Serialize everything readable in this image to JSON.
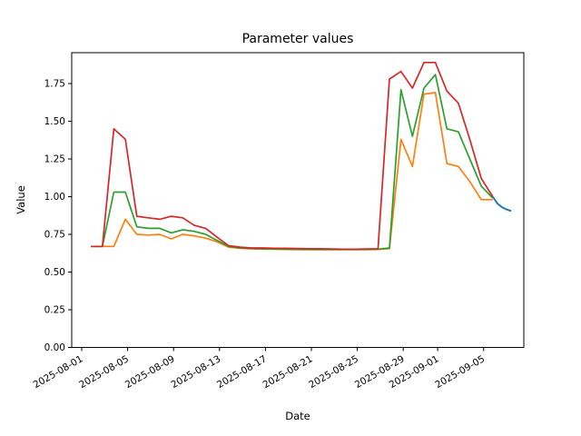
{
  "figure": {
    "background": "#ffffff",
    "text_color": "#000000"
  },
  "chart_data": {
    "type": "line",
    "title": "Parameter values",
    "xlabel": "Date",
    "ylabel": "Value",
    "grid": false,
    "legend": "none",
    "ylim": [
      0.0,
      1.955
    ],
    "yticks": [
      {
        "value": 0.0,
        "label": "0.00"
      },
      {
        "value": 0.25,
        "label": "0.25"
      },
      {
        "value": 0.5,
        "label": "0.50"
      },
      {
        "value": 0.75,
        "label": "0.75"
      },
      {
        "value": 1.0,
        "label": "1.00"
      },
      {
        "value": 1.25,
        "label": "1.25"
      },
      {
        "value": 1.5,
        "label": "1.50"
      },
      {
        "value": 1.75,
        "label": "1.75"
      }
    ],
    "x_axis": {
      "day_range": [
        -0.87,
        38.5
      ],
      "reference_date": "2025-08-01",
      "tick_label_rotation_deg": 30,
      "ticks": [
        {
          "day": 0,
          "label": "2025-08-01"
        },
        {
          "day": 4,
          "label": "2025-08-05"
        },
        {
          "day": 8,
          "label": "2025-08-09"
        },
        {
          "day": 12,
          "label": "2025-08-13"
        },
        {
          "day": 16,
          "label": "2025-08-17"
        },
        {
          "day": 20,
          "label": "2025-08-21"
        },
        {
          "day": 24,
          "label": "2025-08-25"
        },
        {
          "day": 28,
          "label": "2025-08-29"
        },
        {
          "day": 31,
          "label": "2025-09-01"
        },
        {
          "day": 35,
          "label": "2025-09-05"
        }
      ]
    },
    "point_dates": {
      "first": "2025-08-01",
      "last": "2025-09-05",
      "step_days": 1,
      "count": 36
    },
    "series": [
      {
        "name": "series-blue-tail",
        "color": "#1f77b4",
        "linewidth": 2.0,
        "days": [
          35.8,
          36.2,
          36.6,
          37.0,
          37.4
        ],
        "values": [
          1.0,
          0.955,
          0.93,
          0.915,
          0.905
        ]
      },
      {
        "name": "series-orange",
        "color": "#ff7f0e",
        "linewidth": 1.7,
        "day_start": 0.8,
        "day_step": 1,
        "values": [
          0.67,
          0.67,
          0.67,
          0.85,
          0.75,
          0.745,
          0.75,
          0.72,
          0.75,
          0.74,
          0.725,
          0.7,
          0.665,
          0.657,
          0.654,
          0.652,
          0.651,
          0.65,
          0.649,
          0.648,
          0.648,
          0.648,
          0.648,
          0.648,
          0.649,
          0.65,
          0.655,
          1.38,
          1.2,
          1.68,
          1.69,
          1.22,
          1.2,
          1.1,
          0.98,
          0.98
        ]
      },
      {
        "name": "series-green",
        "color": "#2ca02c",
        "linewidth": 1.7,
        "day_start": 0.8,
        "day_step": 1,
        "values": [
          0.67,
          0.67,
          1.03,
          1.03,
          0.8,
          0.79,
          0.79,
          0.76,
          0.78,
          0.77,
          0.75,
          0.71,
          0.67,
          0.66,
          0.656,
          0.654,
          0.653,
          0.652,
          0.651,
          0.65,
          0.65,
          0.65,
          0.65,
          0.65,
          0.65,
          0.652,
          0.66,
          1.71,
          1.4,
          1.72,
          1.81,
          1.45,
          1.43,
          1.25,
          1.07,
          0.99
        ]
      },
      {
        "name": "series-red",
        "color": "#d62728",
        "linewidth": 1.7,
        "day_start": 0.8,
        "day_step": 1,
        "values": [
          0.67,
          0.67,
          1.45,
          1.38,
          0.87,
          0.86,
          0.85,
          0.87,
          0.86,
          0.81,
          0.79,
          0.73,
          0.675,
          0.665,
          0.66,
          0.66,
          0.658,
          0.657,
          0.656,
          0.655,
          0.654,
          0.653,
          0.652,
          0.652,
          0.653,
          0.655,
          1.78,
          1.83,
          1.72,
          1.89,
          1.89,
          1.7,
          1.62,
          1.38,
          1.12,
          1.0
        ]
      }
    ]
  }
}
